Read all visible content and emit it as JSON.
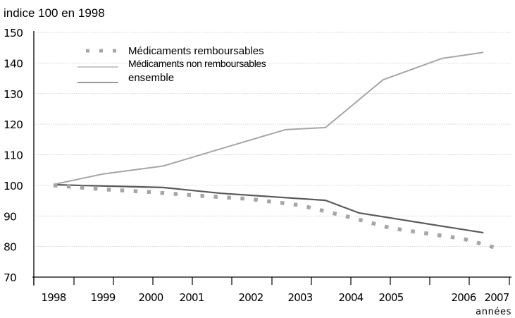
{
  "chart_data": {
    "type": "line",
    "title": "",
    "subtitle": "indice 100 en 1998",
    "xlabel": "années",
    "ylabel": "indice 100 en 1998",
    "ylim": [
      70,
      150
    ],
    "yticks": [
      70,
      80,
      90,
      100,
      110,
      120,
      130,
      140,
      150
    ],
    "x_tick_labels": [
      "1998",
      "1999",
      "2000",
      "2001",
      "2002",
      "2003",
      "2004",
      "2005",
      "2006",
      "2007"
    ],
    "grid": true,
    "legend_position": "top-left",
    "series": [
      {
        "name": "Médicaments remboursables",
        "style": "dotted",
        "color": "#a6a6a6",
        "points": [
          [
            1998.0,
            100.0
          ],
          [
            1999.0,
            98.7
          ],
          [
            2000.0,
            97.8
          ],
          [
            2001.0,
            96.8
          ],
          [
            2002.0,
            95.5
          ],
          [
            2003.0,
            93.5
          ],
          [
            2004.0,
            89.5
          ],
          [
            2005.0,
            86.0
          ],
          [
            2006.0,
            82.5
          ],
          [
            2007.0,
            79.5
          ]
        ]
      },
      {
        "name": "Médicaments non remboursables",
        "style": "solid",
        "color": "#a6a6a6",
        "points": [
          [
            1998.0,
            100.3
          ],
          [
            1999.0,
            103.7
          ],
          [
            2000.3,
            106.3
          ],
          [
            2001.5,
            112.0
          ],
          [
            2002.7,
            118.2
          ],
          [
            2003.5,
            118.9
          ],
          [
            2004.8,
            134.5
          ],
          [
            2005.7,
            141.5
          ],
          [
            2006.6,
            143.5
          ]
        ]
      },
      {
        "name": "ensemble",
        "style": "solid",
        "color": "#595959",
        "points": [
          [
            1998.0,
            100.2
          ],
          [
            2000.3,
            99.3
          ],
          [
            2001.5,
            97.4
          ],
          [
            2003.5,
            95.1
          ],
          [
            2004.2,
            91.0
          ],
          [
            2006.6,
            84.5
          ]
        ]
      }
    ]
  }
}
